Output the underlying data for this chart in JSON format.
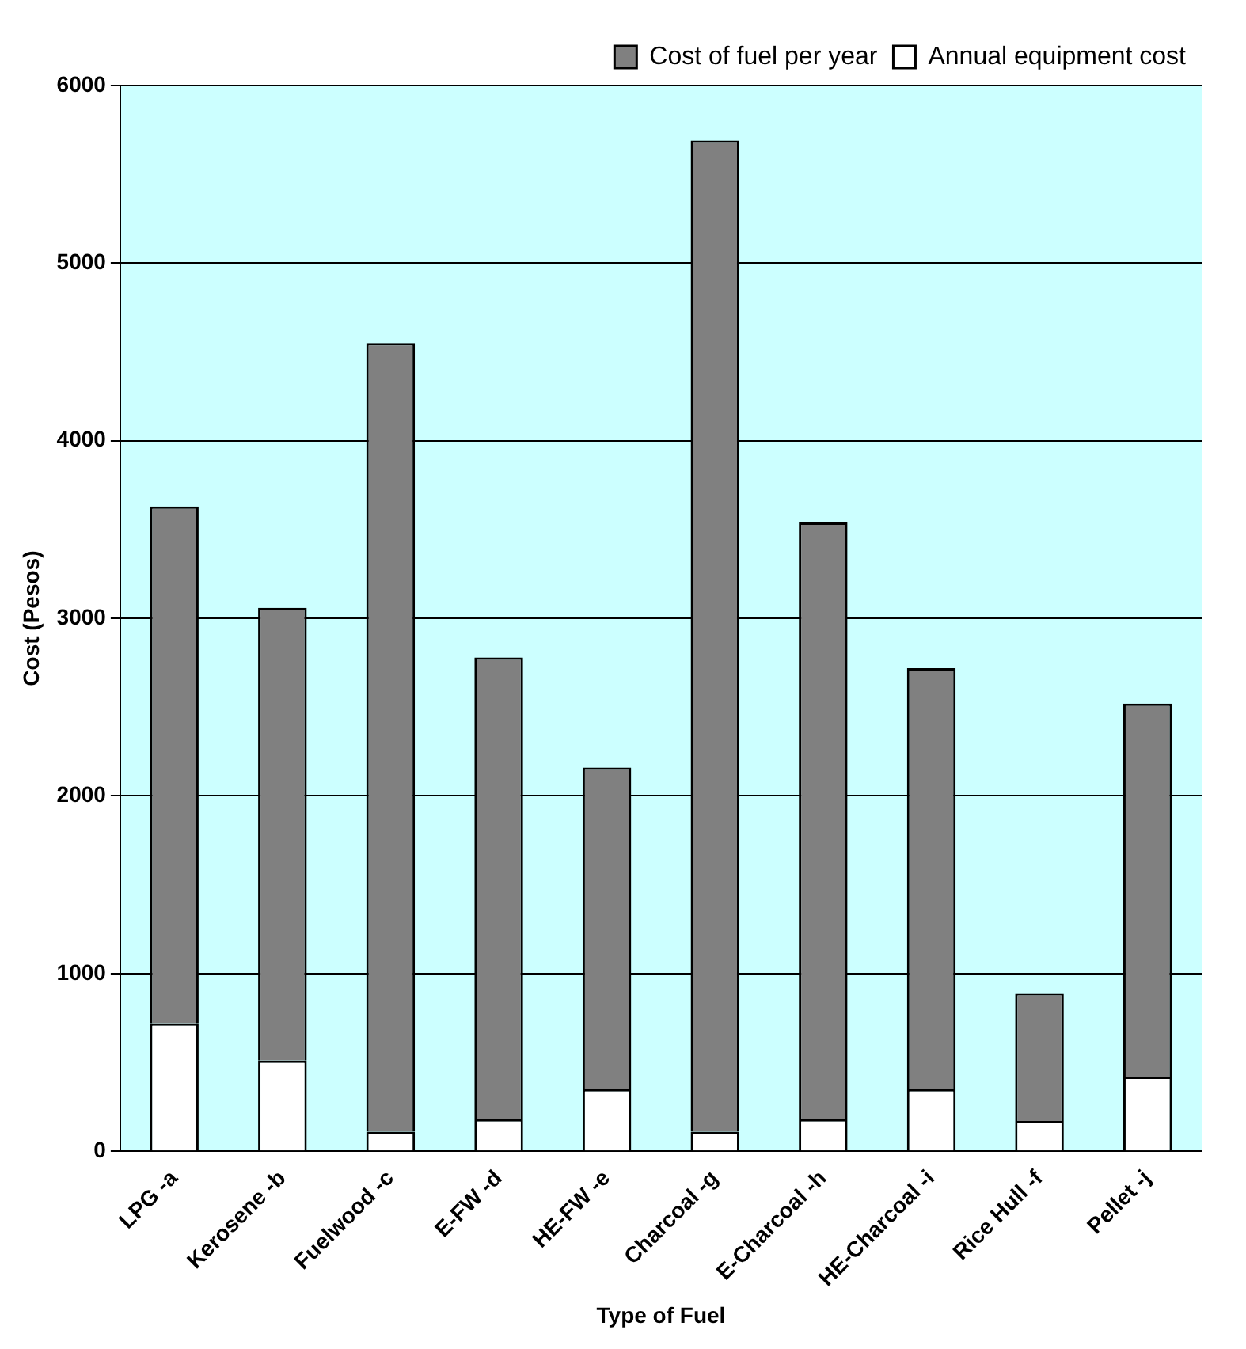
{
  "chart_data": {
    "type": "bar",
    "stacked": true,
    "xlabel": "Type of Fuel",
    "ylabel": "Cost (Pesos)",
    "categories": [
      "LPG -a",
      "Kerosene -b",
      "Fuelwood -c",
      "E-FW -d",
      "HE-FW -e",
      "Charcoal -g",
      "E-Charcoal -h",
      "HE-Charcoal -i",
      "Rice Hull -f",
      "Pellet -j"
    ],
    "series": [
      {
        "name": "Annual equipment cost",
        "color": "#ffffff",
        "values": [
          720,
          510,
          110,
          180,
          350,
          110,
          180,
          350,
          170,
          420
        ]
      },
      {
        "name": "Cost of fuel per year",
        "color": "#808080",
        "values": [
          2910,
          2550,
          4440,
          2600,
          1810,
          5580,
          3360,
          2370,
          720,
          2100
        ]
      }
    ],
    "ylim": [
      0,
      6000
    ],
    "yticks": [
      0,
      1000,
      2000,
      3000,
      4000,
      5000,
      6000
    ],
    "grid": "y",
    "legend": "top right"
  }
}
